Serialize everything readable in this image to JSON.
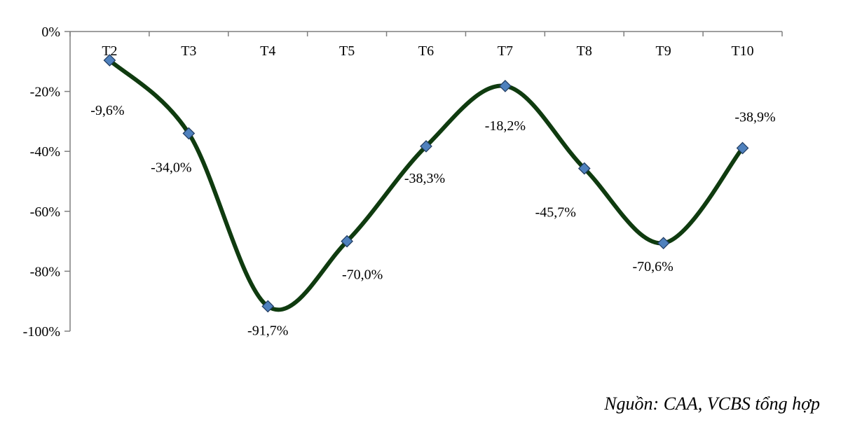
{
  "chart_data": {
    "type": "line",
    "categories": [
      "T2",
      "T3",
      "T4",
      "T5",
      "T6",
      "T7",
      "T8",
      "T9",
      "T10"
    ],
    "series": [
      {
        "values": [
          -9.6,
          -34.0,
          -91.7,
          -70.0,
          -38.3,
          -18.2,
          -45.7,
          -70.6,
          -38.9
        ]
      }
    ],
    "data_labels": [
      "-9,6%",
      "-34,0%",
      "-91,7%",
      "-70,0%",
      "-38,3%",
      "-18,2%",
      "-45,7%",
      "-70,6%",
      "-38,9%"
    ],
    "y_ticks": [
      0,
      -20,
      -40,
      -60,
      -80,
      -100
    ],
    "y_tick_labels": [
      "0%",
      "-20%",
      "-40%",
      "-60%",
      "-80%",
      "-100%"
    ],
    "ylim": [
      -100,
      0
    ],
    "smooth": true,
    "grid": false,
    "line_color": "#0f3b0f",
    "marker_color": "#4f81bd",
    "marker_shape": "diamond"
  },
  "source": "Nguồn: CAA, VCBS tổng hợp"
}
